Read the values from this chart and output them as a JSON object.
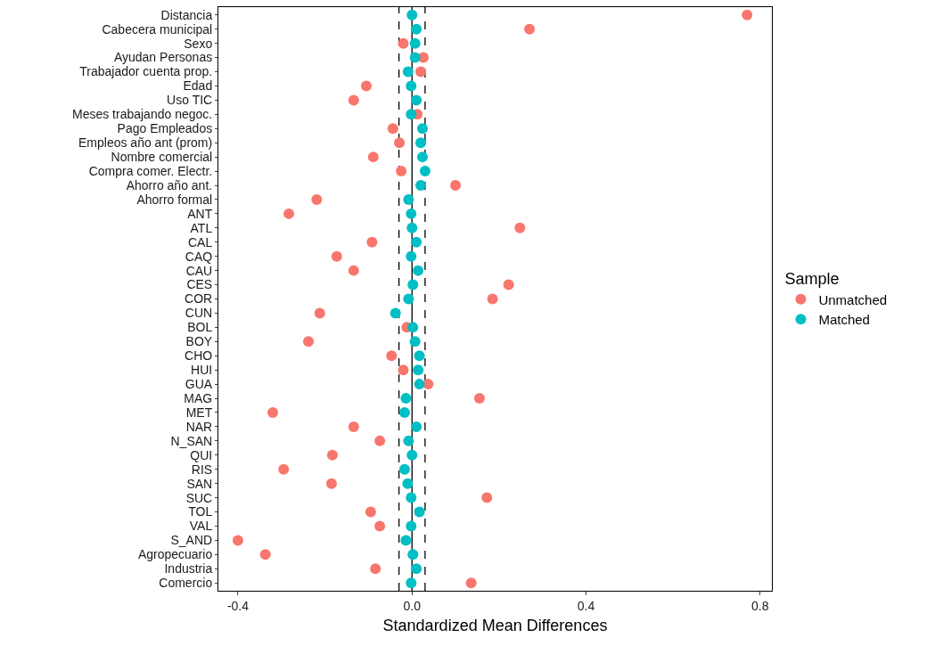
{
  "chart_data": {
    "type": "scatter",
    "xlabel": "Standardized Mean Differences",
    "legend_title": "Sample",
    "categories": [
      "Distancia",
      "Cabecera municipal",
      "Sexo",
      "Ayudan Personas",
      "Trabajador cuenta prop.",
      "Edad",
      "Uso TIC",
      "Meses trabajando negoc.",
      "Pago Empleados",
      "Empleos año ant (prom)",
      "Nombre comercial",
      "Compra comer. Electr.",
      "Ahorro año ant.",
      "Ahorro formal",
      "ANT",
      "ATL",
      "CAL",
      "CAQ",
      "CAU",
      "CES",
      "COR",
      "CUN",
      "BOL",
      "BOY",
      "CHO",
      "HUI",
      "GUA",
      "MAG",
      "MET",
      "NAR",
      "N_SAN",
      "QUI",
      "RIS",
      "SAN",
      "SUC",
      "TOL",
      "VAL",
      "S_AND",
      "Agropecuario",
      "Industria",
      "Comercio"
    ],
    "series": [
      {
        "name": "Unmatched",
        "color": "#f8766d",
        "values": [
          0.77,
          0.27,
          -0.02,
          0.026,
          0.02,
          -0.105,
          -0.134,
          0.012,
          -0.044,
          -0.029,
          -0.089,
          -0.025,
          0.1,
          -0.219,
          -0.283,
          0.248,
          -0.092,
          -0.173,
          -0.134,
          0.222,
          0.185,
          -0.212,
          -0.012,
          -0.238,
          -0.047,
          -0.02,
          0.037,
          0.155,
          -0.32,
          -0.134,
          -0.074,
          -0.183,
          -0.295,
          -0.185,
          0.172,
          -0.095,
          -0.074,
          -0.4,
          -0.337,
          -0.084,
          0.136
        ]
      },
      {
        "name": "Matched",
        "color": "#00bfc4",
        "values": [
          0.0,
          0.01,
          0.007,
          0.007,
          -0.009,
          -0.002,
          0.01,
          -0.002,
          0.024,
          0.02,
          0.024,
          0.03,
          0.02,
          -0.008,
          -0.002,
          0.0,
          0.01,
          -0.002,
          0.014,
          0.002,
          -0.008,
          -0.038,
          0.002,
          0.007,
          0.017,
          0.014,
          0.017,
          -0.014,
          -0.017,
          0.01,
          -0.008,
          0.0,
          -0.017,
          -0.01,
          -0.002,
          0.017,
          -0.002,
          -0.014,
          0.002,
          0.01,
          -0.002
        ]
      }
    ],
    "orientation": "horizontal",
    "xlim": [
      -0.445,
      0.827
    ],
    "xticks": [
      {
        "value": -0.4,
        "label": "-0.4"
      },
      {
        "value": 0,
        "label": "0.0"
      },
      {
        "value": 0.4,
        "label": "0.4"
      },
      {
        "value": 0.8,
        "label": "0.8"
      }
    ],
    "ref_lines": [
      {
        "axis": "x",
        "value": 0,
        "color": "#000000",
        "line_style": "solid"
      },
      {
        "axis": "x",
        "value": -0.03,
        "color": "#000000",
        "line_style": "dashed"
      },
      {
        "axis": "x",
        "value": 0.03,
        "color": "#000000",
        "line_style": "dashed"
      }
    ],
    "grid": false,
    "legend": "right",
    "marker": "circle"
  }
}
